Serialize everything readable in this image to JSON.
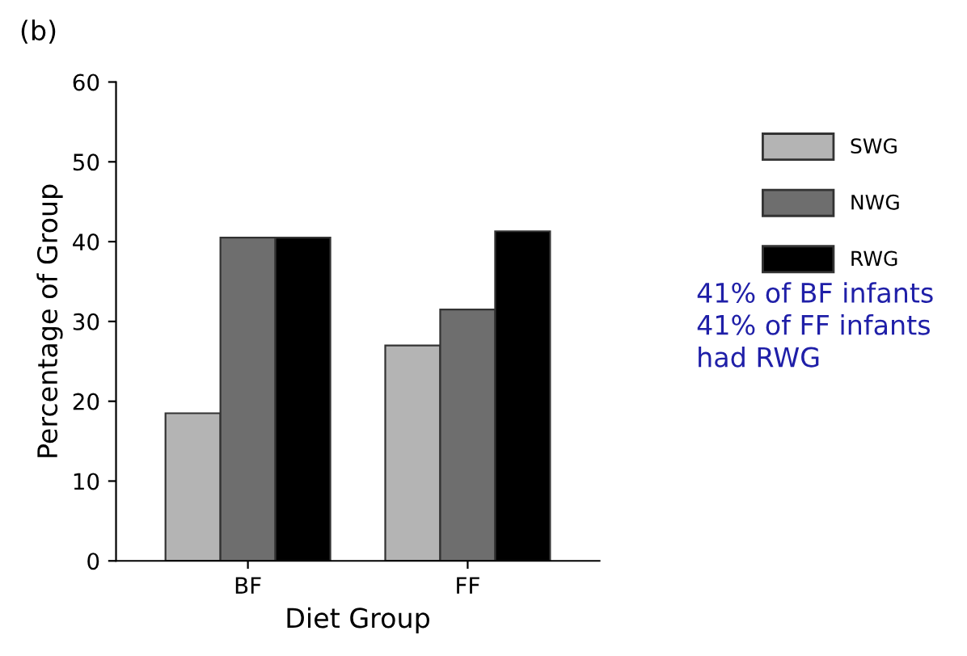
{
  "chart_data": {
    "type": "bar",
    "xlabel": "Diet Group",
    "ylabel": "Percentage of Group",
    "categories": [
      "BF",
      "FF"
    ],
    "series": [
      {
        "name": "SWG",
        "color": "#b4b4b4",
        "values": [
          18.5,
          27.0
        ]
      },
      {
        "name": "NWG",
        "color": "#6e6e6e",
        "values": [
          40.5,
          31.5
        ]
      },
      {
        "name": "RWG",
        "color": "#000000",
        "values": [
          40.5,
          41.3
        ]
      }
    ],
    "ylim": [
      0,
      60
    ],
    "yticks": [
      0,
      10,
      20,
      30,
      40,
      50,
      60
    ],
    "grid": false,
    "legend": "right",
    "annotations": [
      "(b)",
      "41% of BF infants\n41% of FF infants\nhad RWG"
    ]
  }
}
